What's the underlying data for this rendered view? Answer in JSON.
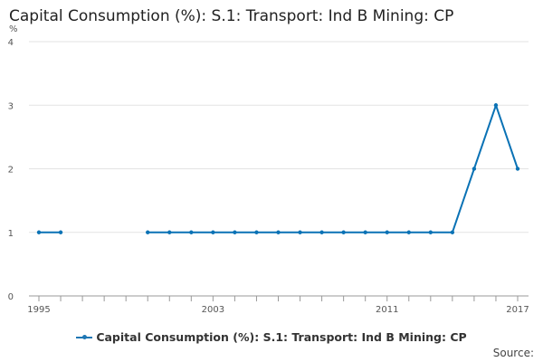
{
  "page_title": "Capital Consumption (%): S.1: Transport: Ind B Mining: CP",
  "source_label": "Source:",
  "colors": {
    "series": "#0a72b5",
    "grid": "#e3e3e3",
    "axis": "#999999"
  },
  "chart_data": {
    "type": "line",
    "title": "Capital Consumption (%): S.1: Transport: Ind B Mining: CP",
    "ylabel": "%",
    "ylim": [
      0,
      4
    ],
    "yticks": [
      0,
      1,
      2,
      3,
      4
    ],
    "xlim": [
      1995,
      2017
    ],
    "xticks": [
      1995,
      2003,
      2011,
      2017
    ],
    "grid": true,
    "legend_position": "bottom",
    "series": [
      {
        "name": "Capital Consumption (%): S.1: Transport: Ind B Mining: CP",
        "points": [
          [
            1995,
            1
          ],
          [
            1996,
            1
          ],
          [
            1997,
            null
          ],
          [
            1998,
            null
          ],
          [
            1999,
            null
          ],
          [
            2000,
            1
          ],
          [
            2001,
            1
          ],
          [
            2002,
            1
          ],
          [
            2003,
            1
          ],
          [
            2004,
            1
          ],
          [
            2005,
            1
          ],
          [
            2006,
            1
          ],
          [
            2007,
            1
          ],
          [
            2008,
            1
          ],
          [
            2009,
            1
          ],
          [
            2010,
            1
          ],
          [
            2011,
            1
          ],
          [
            2012,
            1
          ],
          [
            2013,
            1
          ],
          [
            2014,
            1
          ],
          [
            2015,
            2
          ],
          [
            2016,
            3
          ],
          [
            2017,
            2
          ]
        ]
      }
    ]
  }
}
